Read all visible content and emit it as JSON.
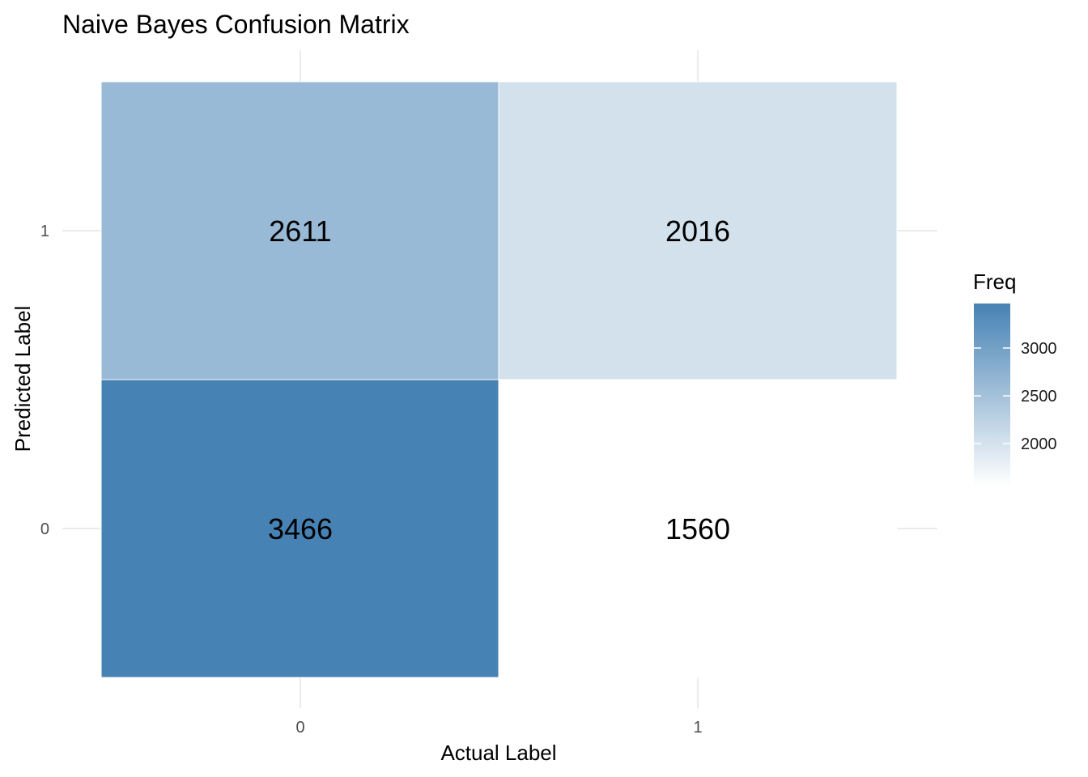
{
  "chart_data": {
    "type": "heatmap",
    "title": "Naive Bayes Confusion Matrix",
    "xlabel": "Actual Label",
    "ylabel": "Predicted Label",
    "x_categories": [
      "0",
      "1"
    ],
    "y_categories": [
      "0",
      "1"
    ],
    "cells": [
      {
        "x": "0",
        "y": "1",
        "value": 2611
      },
      {
        "x": "1",
        "y": "1",
        "value": 2016
      },
      {
        "x": "0",
        "y": "0",
        "value": 3466
      },
      {
        "x": "1",
        "y": "0",
        "value": 1560
      }
    ],
    "legend": {
      "title": "Freq",
      "position": "right",
      "ticks": [
        3000,
        2500,
        2000
      ],
      "range": [
        1560,
        3466
      ],
      "low_color": "#ffffff",
      "high_color": "#4682b4"
    },
    "grid": true
  }
}
